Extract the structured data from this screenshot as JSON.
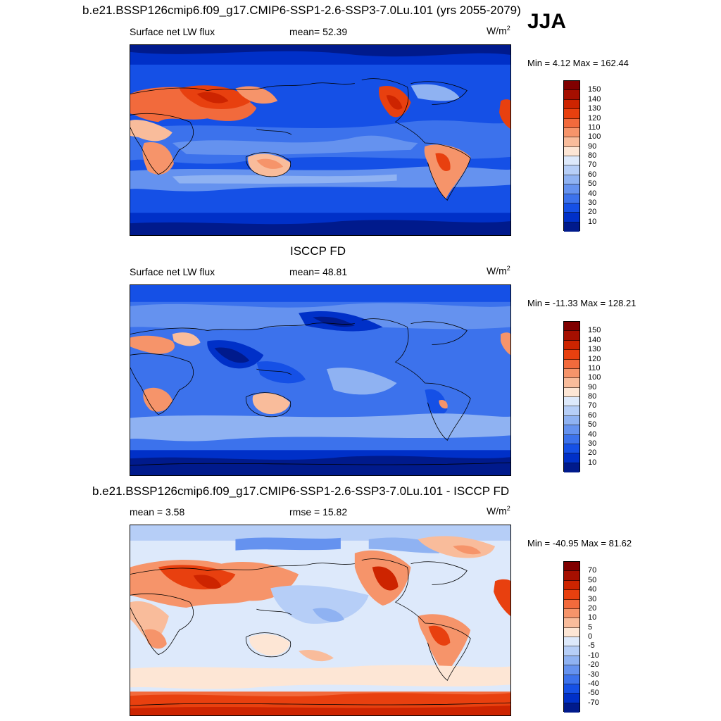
{
  "season": "JJA",
  "panels": [
    {
      "title": "b.e21.BSSP126cmip6.f09_g17.CMIP6-SSP1-2.6-SSP3-7.0Lu.101 (yrs 2055-2079)",
      "left_label": "Surface net LW flux",
      "mid_label": "mean=  52.39",
      "units": "W/m",
      "units_sup": "2",
      "minmax": "Min =   4.12 Max = 162.44",
      "colorbar": {
        "ticks": [
          "150",
          "140",
          "130",
          "120",
          "110",
          "100",
          "90",
          "80",
          "70",
          "60",
          "50",
          "40",
          "30",
          "20",
          "10"
        ],
        "colors": [
          "#800000",
          "#a50f00",
          "#cd2400",
          "#e8400f",
          "#f26a3c",
          "#f6946a",
          "#f9bc9b",
          "#fde6d5",
          "#dde9fb",
          "#b6cef7",
          "#8fb2f2",
          "#6592ef",
          "#3c72ec",
          "#1550e6",
          "#0030c8",
          "#001a8c"
        ]
      }
    },
    {
      "title": "ISCCP FD",
      "left_label": "Surface net LW flux",
      "mid_label": "mean=  48.81",
      "units": "W/m",
      "units_sup": "2",
      "minmax": "Min = -11.33 Max = 128.21",
      "colorbar": {
        "ticks": [
          "150",
          "140",
          "130",
          "120",
          "110",
          "100",
          "90",
          "80",
          "70",
          "60",
          "50",
          "40",
          "30",
          "20",
          "10"
        ],
        "colors": [
          "#800000",
          "#a50f00",
          "#cd2400",
          "#e8400f",
          "#f26a3c",
          "#f6946a",
          "#f9bc9b",
          "#fde6d5",
          "#dde9fb",
          "#b6cef7",
          "#8fb2f2",
          "#6592ef",
          "#3c72ec",
          "#1550e6",
          "#0030c8",
          "#001a8c"
        ]
      }
    },
    {
      "title": "b.e21.BSSP126cmip6.f09_g17.CMIP6-SSP1-2.6-SSP3-7.0Lu.101 - ISCCP FD",
      "left_label": "mean =   3.58",
      "mid_label": "rmse =  15.82",
      "units": "W/m",
      "units_sup": "2",
      "minmax": "Min = -40.95 Max =  81.62",
      "colorbar": {
        "ticks": [
          "70",
          "50",
          "40",
          "30",
          "20",
          "10",
          "5",
          "0",
          "-5",
          "-10",
          "-20",
          "-30",
          "-40",
          "-50",
          "-70"
        ],
        "colors": [
          "#800000",
          "#a50f00",
          "#cd2400",
          "#e8400f",
          "#f26a3c",
          "#f6946a",
          "#f9bc9b",
          "#fde6d5",
          "#dde9fb",
          "#b6cef7",
          "#8fb2f2",
          "#6592ef",
          "#3c72ec",
          "#1550e6",
          "#0030c8",
          "#001a8c"
        ]
      }
    }
  ]
}
